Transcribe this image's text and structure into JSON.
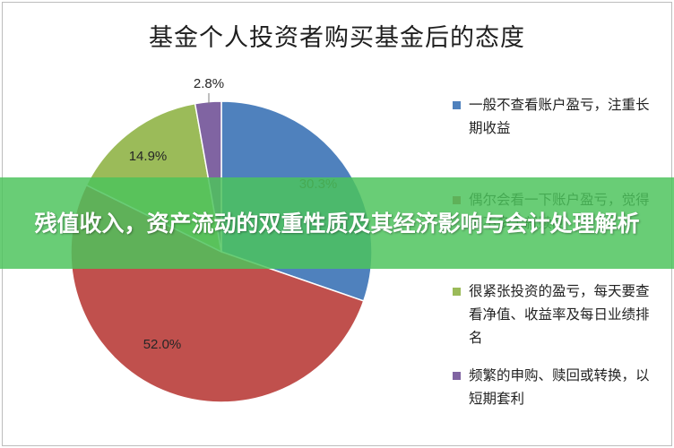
{
  "banner": {
    "text": "残值收入，资产流动的双重性质及其经济影响与会计处理解析"
  },
  "colors": {
    "blue": "#4f81bd",
    "red": "#c0504d",
    "green": "#9bbb59",
    "purple": "#8064a2"
  },
  "chart_data": {
    "type": "pie",
    "title": "基金个人投资者购买基金后的态度",
    "legend_position": "right",
    "slices": [
      {
        "label": "一般不查看账户盈亏，注重长期收益",
        "value": 30.3,
        "display": "30.3%",
        "color": "#4f81bd"
      },
      {
        "label": "偶尔会看一下账户盈亏，觉得差不多了就赎回",
        "value": 52.0,
        "display": "52.0%",
        "color": "#c0504d"
      },
      {
        "label": "很紧张投资的盈亏，每天要查看净值、收益率及每日业绩排名",
        "value": 14.9,
        "display": "14.9%",
        "color": "#9bbb59"
      },
      {
        "label": "频繁的申购、赎回或转换，以短期套利",
        "value": 2.8,
        "display": "2.8%",
        "color": "#8064a2"
      }
    ]
  }
}
